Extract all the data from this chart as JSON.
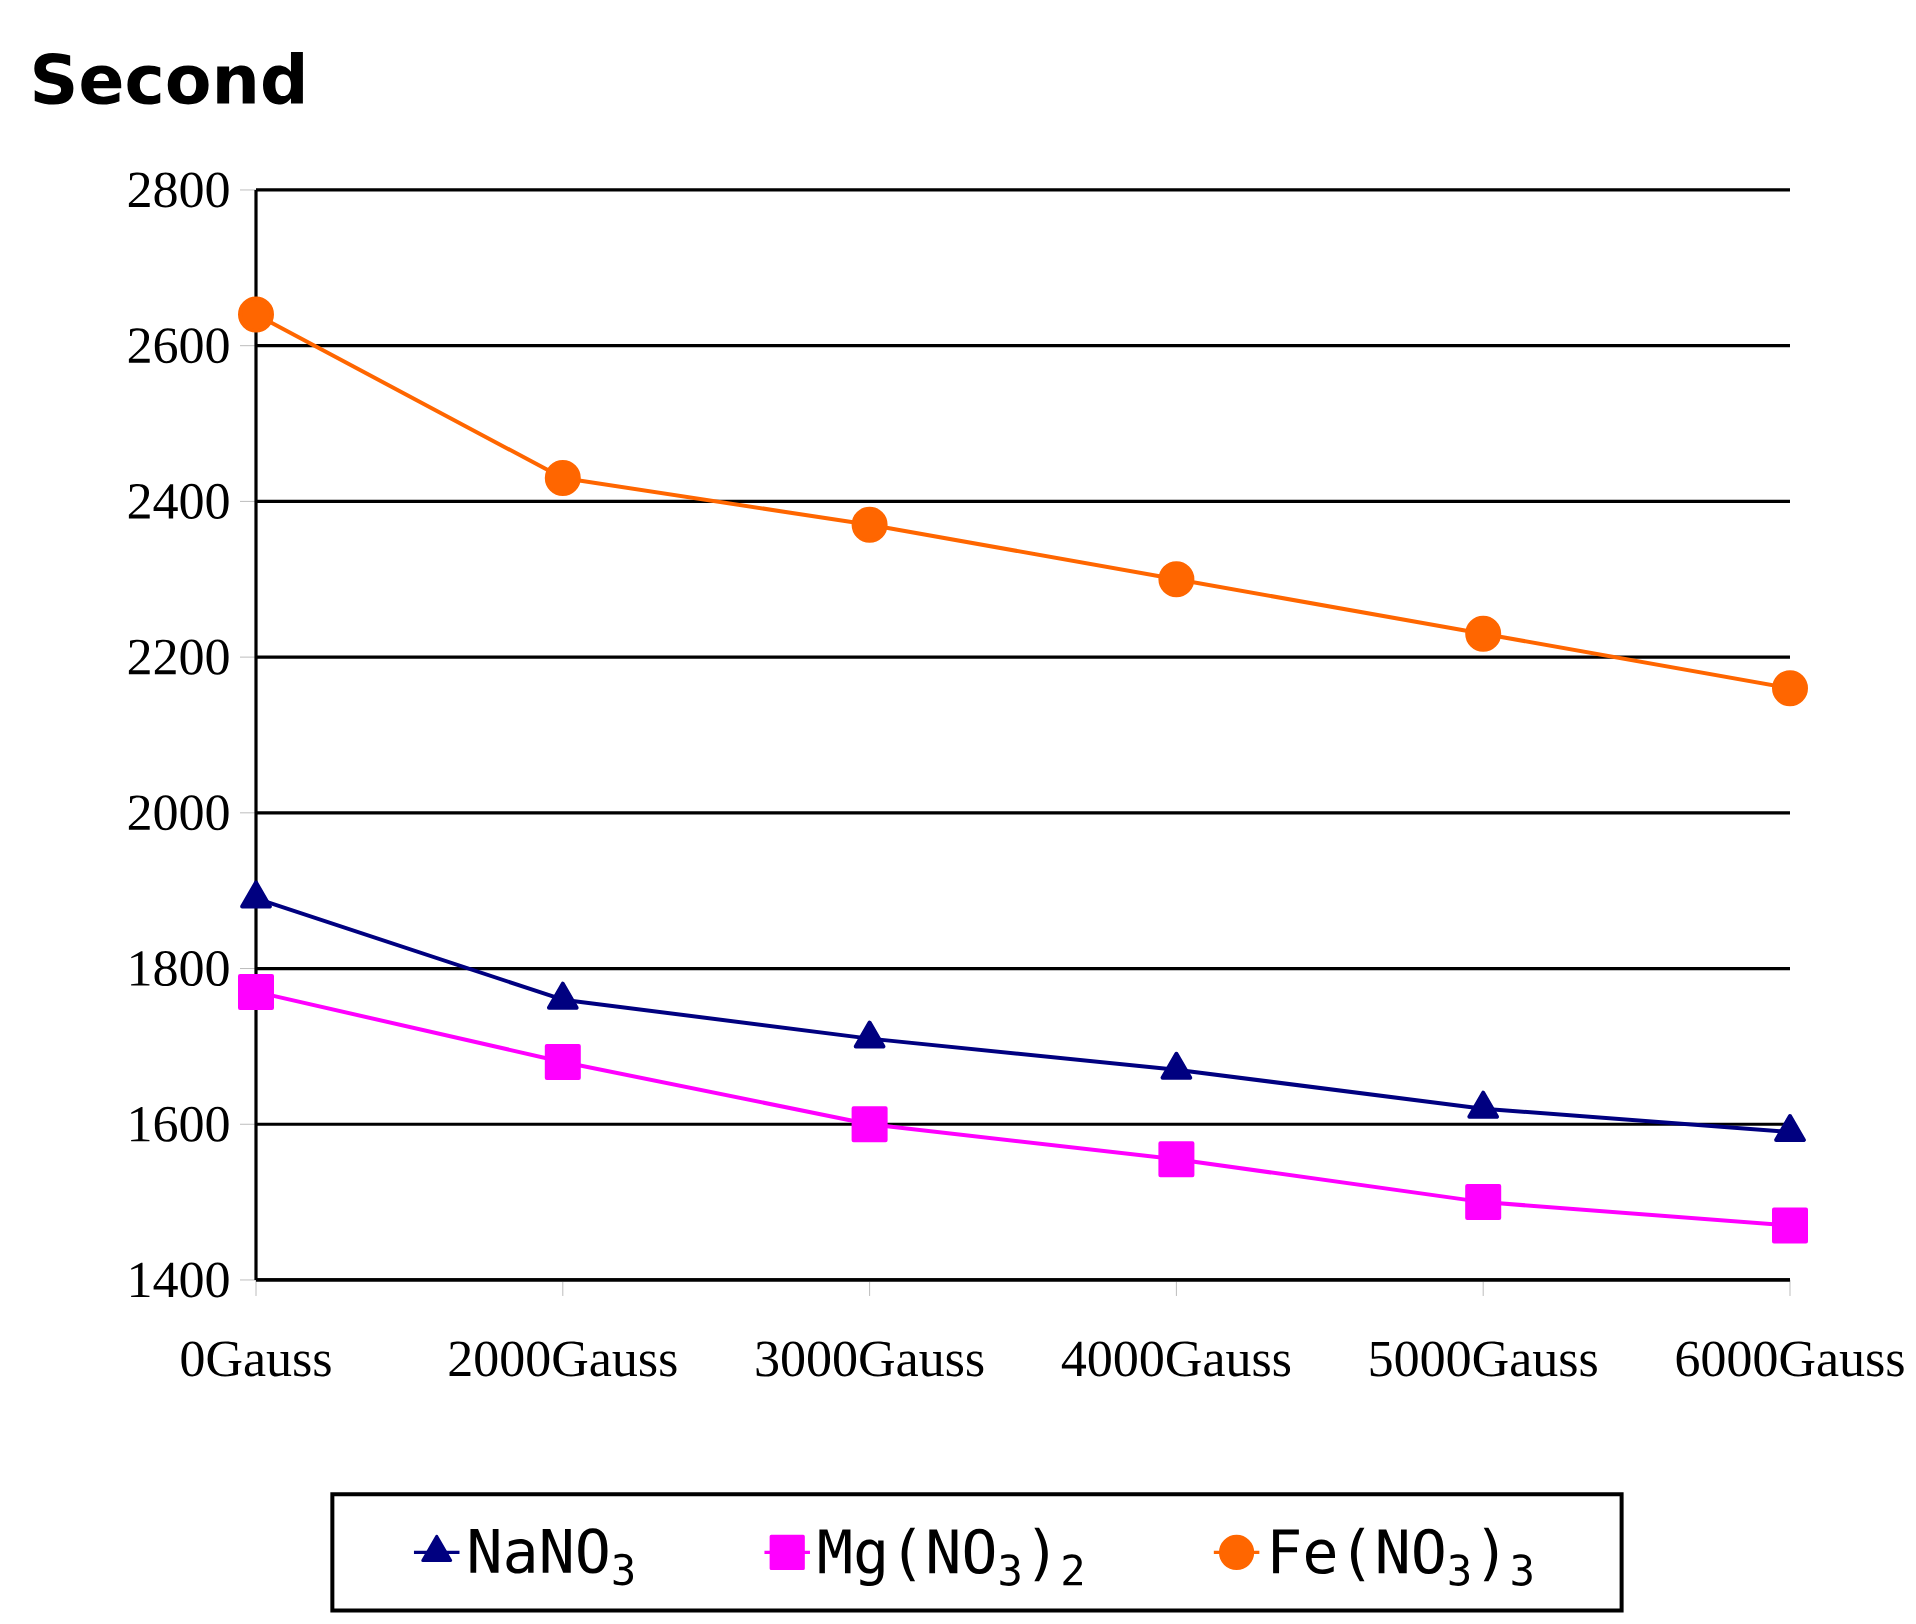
{
  "chart_data": {
    "type": "line",
    "ylabel": "Second",
    "categories": [
      "0Gauss",
      "2000Gauss",
      "3000Gauss",
      "4000Gauss",
      "5000Gauss",
      "6000Gauss"
    ],
    "series": [
      {
        "name": "NaNO$_{3}$",
        "color": "#000080",
        "marker": "triangle",
        "values": [
          1890,
          1760,
          1710,
          1670,
          1620,
          1590
        ]
      },
      {
        "name": "Mg(NO$_{3}$)$_{2}$",
        "color": "#ff00ff",
        "marker": "square",
        "values": [
          1770,
          1680,
          1600,
          1555,
          1500,
          1470
        ]
      },
      {
        "name": "Fe(NO$_{3}$)$_{3}$",
        "color": "#ff6600",
        "marker": "circle",
        "values": [
          2640,
          2430,
          2370,
          2300,
          2230,
          2160
        ]
      }
    ],
    "ylim": [
      1400,
      2800
    ],
    "yticks": [
      1400,
      1600,
      1800,
      2000,
      2200,
      2400,
      2600,
      2800
    ],
    "grid": "y",
    "legend": "bottom",
    "line_style": "solid"
  }
}
